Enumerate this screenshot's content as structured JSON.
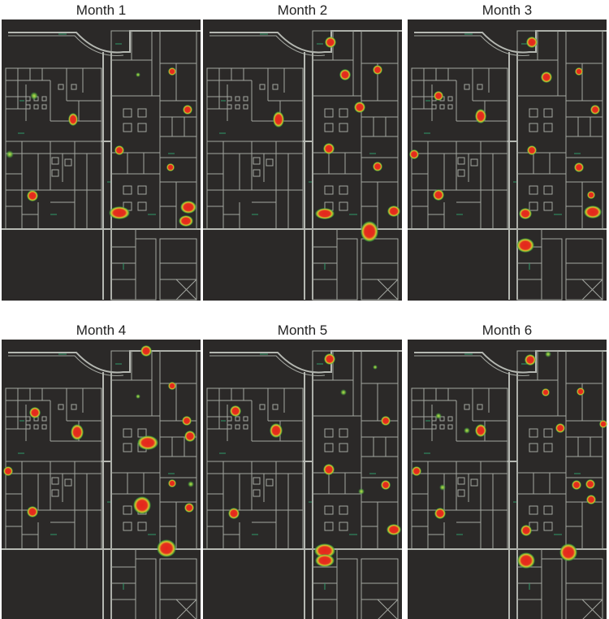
{
  "panels": [
    {
      "title": "Month 1"
    },
    {
      "title": "Month 2"
    },
    {
      "title": "Month 3"
    },
    {
      "title": "Month 4"
    },
    {
      "title": "Month 5"
    },
    {
      "title": "Month 6"
    }
  ]
}
